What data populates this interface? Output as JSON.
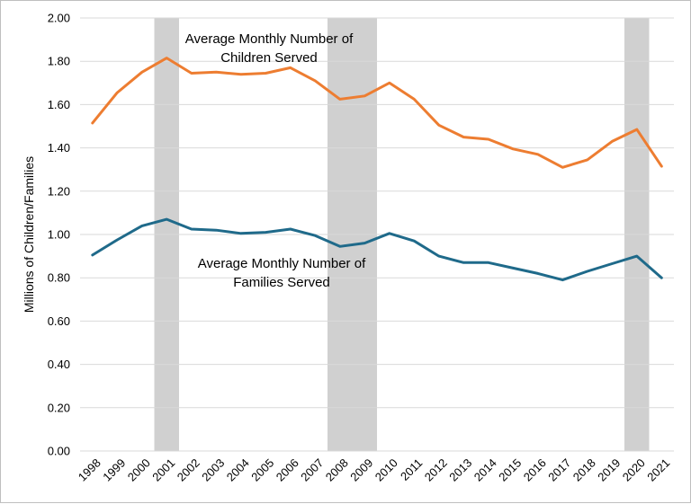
{
  "chart_data": {
    "type": "line",
    "title": "",
    "xlabel": "",
    "ylabel": "Millions of Children/Families",
    "ylim": [
      0,
      2.0
    ],
    "yticks": [
      "0.00",
      "0.20",
      "0.40",
      "0.60",
      "0.80",
      "1.00",
      "1.20",
      "1.40",
      "1.60",
      "1.80",
      "2.00"
    ],
    "grid": "horizontal",
    "legend": "none (series labeled inline)",
    "categories": [
      "1998",
      "1999",
      "2000",
      "2001",
      "2002",
      "2003",
      "2004",
      "2005",
      "2006",
      "2007",
      "2008",
      "2009",
      "2010",
      "2011",
      "2012",
      "2013",
      "2014",
      "2015",
      "2016",
      "2017",
      "2018",
      "2019",
      "2020",
      "2021"
    ],
    "shaded_periods": [
      {
        "start": "2001",
        "end": "2001"
      },
      {
        "start": "2008",
        "end": "2009"
      },
      {
        "start": "2020",
        "end": "2020"
      }
    ],
    "series": [
      {
        "name": "Average Monthly Number of Children Served",
        "label_lines": [
          "Average Monthly Number of",
          "Children Served"
        ],
        "color": "#ED7D31",
        "values": [
          1.515,
          1.655,
          1.75,
          1.815,
          1.745,
          1.75,
          1.74,
          1.745,
          1.77,
          1.71,
          1.625,
          1.64,
          1.7,
          1.625,
          1.505,
          1.45,
          1.44,
          1.395,
          1.37,
          1.31,
          1.345,
          1.43,
          1.485,
          1.315
        ]
      },
      {
        "name": "Average Monthly Number of Families Served",
        "label_lines": [
          "Average Monthly Number of",
          "Families Served"
        ],
        "color": "#1F6A8A",
        "values": [
          0.905,
          0.975,
          1.04,
          1.07,
          1.025,
          1.02,
          1.005,
          1.01,
          1.025,
          0.995,
          0.945,
          0.96,
          1.005,
          0.97,
          0.9,
          0.87,
          0.87,
          0.845,
          0.82,
          0.79,
          0.83,
          0.865,
          0.9,
          0.8
        ]
      }
    ]
  }
}
